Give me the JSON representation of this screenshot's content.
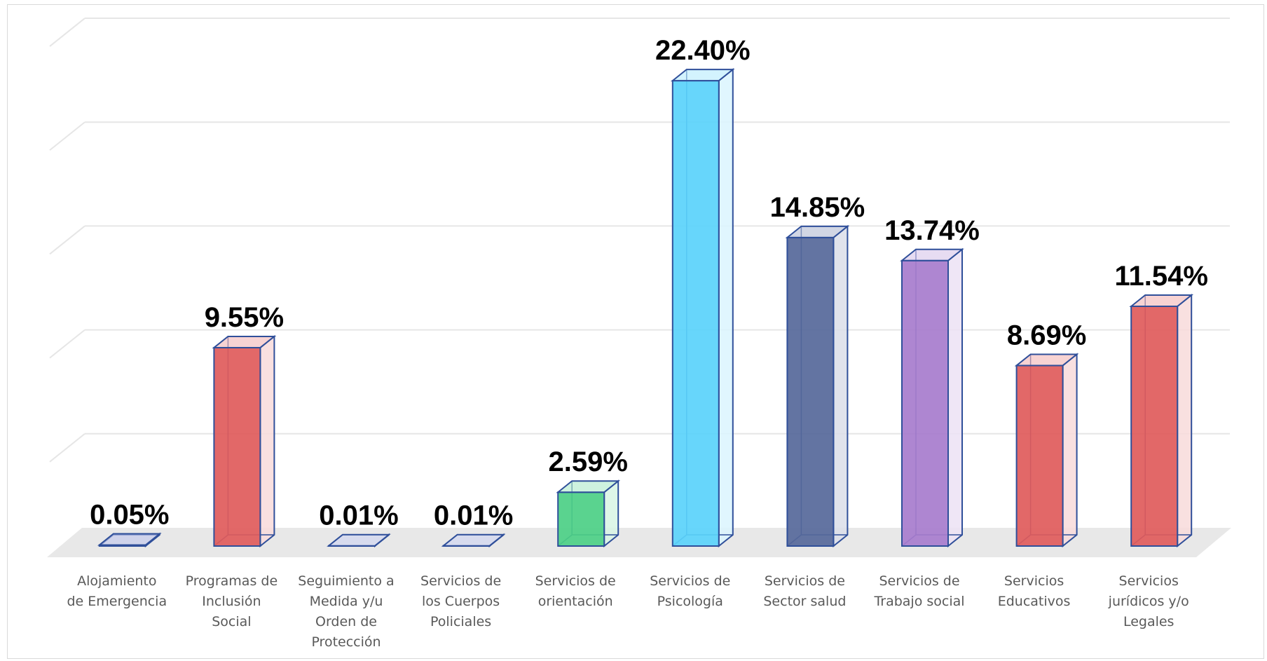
{
  "chart_data": {
    "type": "bar",
    "style": "3d-clustered-column",
    "title": "",
    "xlabel": "",
    "ylabel": "",
    "ylim": [
      0,
      25
    ],
    "grid": true,
    "legend": "none",
    "categories": [
      "Alojamiento de Emergencia",
      "Programas de Inclusión Social",
      "Seguimiento a Medida y/u Orden de Protección",
      "Servicios de los Cuerpos Policiales",
      "Servicios de orientación",
      "Servicios de Psicología",
      "Servicios de Sector salud",
      "Servicios de Trabajo social",
      "Servicios Educativos",
      "Servicios jurídicos y/o Legales"
    ],
    "category_lines": [
      [
        "Alojamiento",
        "de Emergencia"
      ],
      [
        "Programas de",
        "Inclusión",
        "Social"
      ],
      [
        "Seguimiento a",
        "Medida y/u",
        "Orden de",
        "Protección"
      ],
      [
        "Servicios de",
        "los Cuerpos",
        "Policiales"
      ],
      [
        "Servicios de",
        "orientación"
      ],
      [
        "Servicios de",
        "Psicología"
      ],
      [
        "Servicios de",
        "Sector salud"
      ],
      [
        "Servicios de",
        "Trabajo social"
      ],
      [
        "Servicios",
        "Educativos"
      ],
      [
        "Servicios",
        "jurídicos y/o",
        "Legales"
      ]
    ],
    "values": [
      0.05,
      9.55,
      0.01,
      0.01,
      2.59,
      22.4,
      14.85,
      13.74,
      8.69,
      11.54
    ],
    "labels": [
      "0.05%",
      "9.55%",
      "0.01%",
      "0.01%",
      "2.59%",
      "22.40%",
      "14.85%",
      "13.74%",
      "8.69%",
      "11.54%"
    ],
    "colors": [
      "#6e7fd6",
      "#e05b5b",
      "#8e9be0",
      "#8e9be0",
      "#4ccf86",
      "#5ad3fb",
      "#56689a",
      "#a77ccd",
      "#e05b5b",
      "#e05b5b"
    ]
  },
  "style": {
    "edge_color": "#2f4f9a",
    "grid_color": "#e6e6e6",
    "floor_color": "#e8e8e8",
    "label_color": "#000000",
    "category_color": "#595959"
  }
}
